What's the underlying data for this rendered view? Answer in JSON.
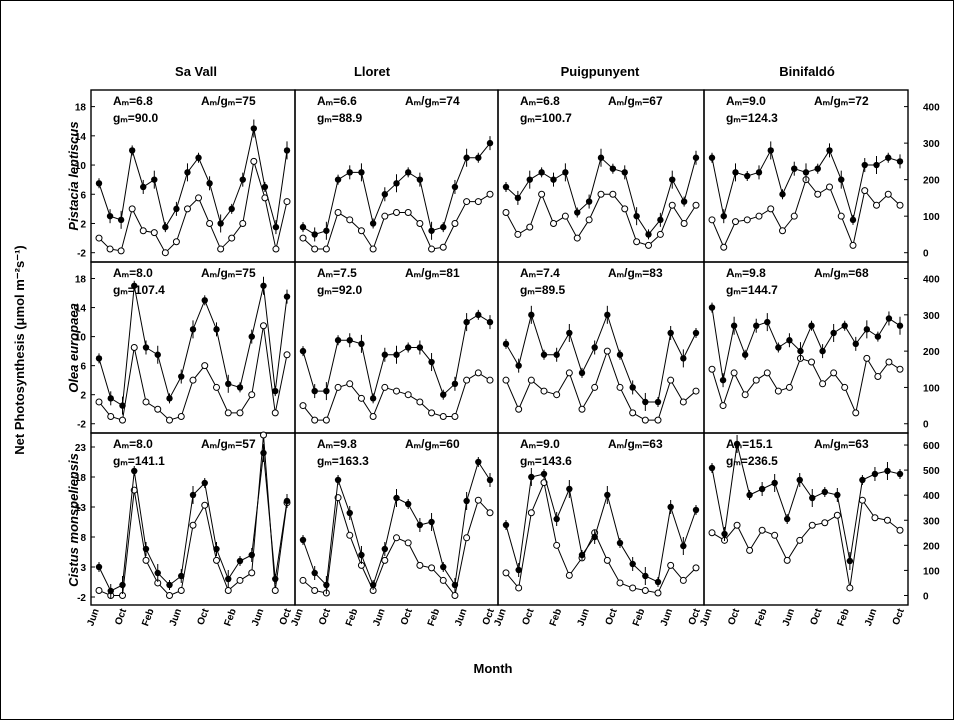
{
  "chart_data": {
    "type": "line",
    "xlabel": "Month",
    "ylabel_left": "Net Photosynthesis (μmol m⁻²s⁻¹)",
    "ylabel_right": "",
    "x_tick_labels": {
      "col0": [
        "Jun",
        "Oct",
        "Feb",
        "Jun",
        "Oct",
        "Feb",
        "Jun",
        "Oct"
      ],
      "col1": [
        "Jun",
        "Oct",
        "Feb",
        "Jun",
        "Oct",
        "Feb",
        "Jun",
        "Oct"
      ],
      "col2": [
        "Jun",
        "Oct",
        "Feb",
        "Jun",
        "Oct",
        "Feb",
        "Jun",
        "Oct"
      ],
      "col3": [
        "Jun",
        "Oct",
        "Feb",
        "Jun",
        "Oct",
        "Feb",
        "Jun",
        "Oct"
      ]
    },
    "sites": [
      "Sa Vall",
      "Lloret",
      "Puigpunyent",
      "Binifaldó"
    ],
    "species": [
      "Pistacia lentiscus",
      "Olea europaea",
      "Cistus monspeliensis"
    ],
    "left_axis": {
      "row0": {
        "ylim": [
          -3,
          20
        ],
        "ticks": [
          -2,
          2,
          6,
          10,
          14,
          18
        ]
      },
      "row1": {
        "ylim": [
          -3,
          20
        ],
        "ticks": [
          -2,
          2,
          6,
          10,
          14,
          18
        ]
      },
      "row2": {
        "ylim": [
          -3,
          25
        ],
        "ticks": [
          -2,
          3,
          8,
          13,
          18,
          23
        ]
      }
    },
    "right_axis": {
      "row0": {
        "ylim": [
          -20,
          440
        ],
        "ticks": [
          0,
          100,
          200,
          300,
          400
        ]
      },
      "row1": {
        "ylim": [
          -20,
          440
        ],
        "ticks": [
          0,
          100,
          200,
          300,
          400
        ]
      },
      "row2": {
        "ylim": [
          -30,
          640
        ],
        "ticks": [
          0,
          100,
          200,
          300,
          400,
          500,
          600
        ]
      }
    },
    "panels": [
      {
        "row": 0,
        "col": 0,
        "am": "Aₘ=6.8",
        "gm": "gₘ=90.0",
        "ratio": "Aₘ/gₘ=75",
        "A": [
          7.5,
          3,
          2.5,
          12,
          7,
          8,
          1.5,
          4,
          9,
          11,
          7.5,
          2,
          4,
          8,
          15,
          7,
          1.5,
          12
        ],
        "G": [
          40,
          10,
          5,
          120,
          60,
          55,
          0,
          30,
          120,
          150,
          80,
          10,
          40,
          80,
          250,
          150,
          10,
          140
        ]
      },
      {
        "row": 0,
        "col": 1,
        "am": "Aₘ=6.6",
        "gm": "gₘ=88.9",
        "ratio": "Aₘ/gₘ=74",
        "A": [
          1.5,
          0.5,
          1,
          8,
          9,
          9,
          2,
          6,
          7.5,
          9,
          8,
          1,
          1.5,
          7,
          11,
          11,
          13
        ],
        "G": [
          40,
          10,
          10,
          110,
          90,
          60,
          10,
          100,
          110,
          110,
          80,
          10,
          15,
          80,
          140,
          140,
          160
        ]
      },
      {
        "row": 0,
        "col": 2,
        "am": "Aₘ=6.8",
        "gm": "gₘ=100.7",
        "ratio": "Aₘ/gₘ=67",
        "A": [
          7,
          5.5,
          8,
          9,
          8,
          9,
          3.5,
          5,
          11,
          9.5,
          9,
          3,
          0.5,
          2.5,
          8,
          5,
          11
        ],
        "G": [
          110,
          50,
          70,
          160,
          80,
          100,
          40,
          90,
          160,
          160,
          120,
          30,
          20,
          50,
          130,
          80,
          130
        ]
      },
      {
        "row": 0,
        "col": 3,
        "am": "Aₘ=9.0",
        "gm": "gₘ=124.3",
        "ratio": "Aₘ/gₘ=72",
        "A": [
          11,
          3,
          9,
          8.5,
          9,
          12,
          6,
          9.5,
          9,
          9.5,
          12,
          8,
          2.5,
          10,
          10,
          11,
          10.5
        ],
        "G": [
          90,
          15,
          85,
          90,
          100,
          120,
          60,
          100,
          200,
          160,
          180,
          100,
          20,
          170,
          130,
          160,
          130
        ]
      },
      {
        "row": 1,
        "col": 0,
        "am": "Aₘ=8.0",
        "gm": "gₘ=107.4",
        "ratio": "Aₘ/gₘ=75",
        "A": [
          7,
          1.5,
          0.5,
          17,
          8.5,
          7.5,
          1.5,
          4.5,
          11,
          15,
          11,
          3.5,
          3,
          10,
          17,
          2.5,
          15.5
        ],
        "G": [
          60,
          20,
          10,
          210,
          60,
          40,
          10,
          20,
          120,
          160,
          100,
          30,
          30,
          80,
          270,
          30,
          190
        ]
      },
      {
        "row": 1,
        "col": 1,
        "am": "Aₘ=7.5",
        "gm": "gₘ=92.0",
        "ratio": "Aₘ/gₘ=81",
        "A": [
          8,
          2.5,
          2.5,
          9.5,
          9.5,
          9,
          1.5,
          7.5,
          7.5,
          8.5,
          8.5,
          6.5,
          2,
          3.5,
          12,
          13,
          12
        ],
        "G": [
          50,
          10,
          10,
          100,
          110,
          70,
          20,
          100,
          90,
          80,
          60,
          30,
          20,
          20,
          120,
          140,
          120
        ]
      },
      {
        "row": 1,
        "col": 2,
        "am": "Aₘ=7.4",
        "gm": "gₘ=89.5",
        "ratio": "Aₘ/gₘ=83",
        "A": [
          9,
          6,
          13,
          7.5,
          7.5,
          10.5,
          5,
          8.5,
          13,
          7.5,
          3,
          1,
          1,
          10.5,
          7,
          10.5
        ],
        "G": [
          120,
          40,
          120,
          90,
          80,
          140,
          40,
          100,
          200,
          100,
          30,
          10,
          10,
          120,
          60,
          90
        ]
      },
      {
        "row": 1,
        "col": 3,
        "am": "Aₘ=9.8",
        "gm": "gₘ=144.7",
        "ratio": "Aₘ/gₘ=68",
        "A": [
          14,
          4,
          11.5,
          7.5,
          11.5,
          12,
          8.5,
          9.5,
          8,
          11.5,
          8,
          10.5,
          11.5,
          9,
          11,
          10,
          12.5,
          11.5
        ],
        "G": [
          150,
          50,
          140,
          80,
          120,
          140,
          90,
          100,
          180,
          170,
          110,
          140,
          100,
          30,
          180,
          130,
          170,
          150
        ]
      },
      {
        "row": 2,
        "col": 0,
        "am": "Aₘ=8.0",
        "gm": "gₘ=141.1",
        "ratio": "Aₘ/gₘ=57",
        "A": [
          3,
          -1,
          0,
          19,
          6,
          2,
          0,
          1.5,
          15,
          17,
          6,
          1,
          4,
          5,
          22,
          1,
          14
        ],
        "G": [
          20,
          0,
          0,
          420,
          140,
          50,
          0,
          20,
          280,
          360,
          140,
          20,
          60,
          90,
          640,
          20,
          370
        ]
      },
      {
        "row": 2,
        "col": 1,
        "am": "Aₘ=9.8",
        "gm": "gₘ=163.3",
        "ratio": "Aₘ/gₘ=60",
        "A": [
          7.5,
          2,
          0,
          17.5,
          12,
          5,
          0,
          6,
          14.5,
          13.5,
          10,
          10.5,
          3,
          0,
          14,
          20.5,
          17.5
        ],
        "G": [
          60,
          20,
          10,
          390,
          240,
          120,
          20,
          140,
          230,
          210,
          120,
          110,
          60,
          0,
          230,
          380,
          330
        ]
      },
      {
        "row": 2,
        "col": 2,
        "am": "Aₘ=9.0",
        "gm": "gₘ=143.6",
        "ratio": "Aₘ/gₘ=63",
        "A": [
          10,
          2.5,
          18,
          18.5,
          11,
          16,
          5,
          8,
          15,
          7,
          3.5,
          1.5,
          0.5,
          13,
          6.5,
          12.5
        ],
        "G": [
          90,
          30,
          330,
          450,
          200,
          80,
          150,
          250,
          140,
          50,
          30,
          20,
          10,
          120,
          60,
          110
        ]
      },
      {
        "row": 2,
        "col": 3,
        "am": "Aₘ=15.1",
        "gm": "gₘ=236.5",
        "ratio": "Aₘ/gₘ=63",
        "A": [
          19.5,
          8.5,
          23.5,
          15,
          16,
          17,
          11,
          17.5,
          14.5,
          15.5,
          15,
          4,
          17.5,
          18.5,
          19,
          18.5
        ],
        "G": [
          250,
          220,
          280,
          180,
          260,
          240,
          140,
          220,
          280,
          290,
          320,
          30,
          380,
          310,
          300,
          260
        ]
      }
    ]
  }
}
